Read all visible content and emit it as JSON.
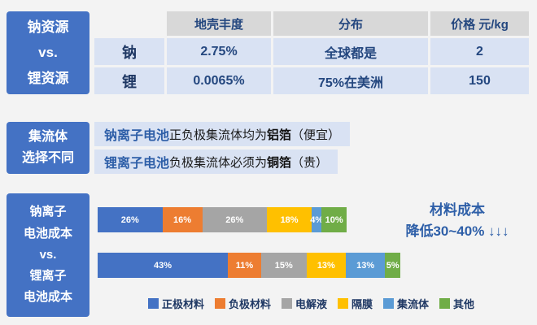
{
  "resources": {
    "sidebar": [
      "钠资源",
      "vs.",
      "锂资源"
    ],
    "table": {
      "headers": [
        "",
        "地壳丰度",
        "分布",
        "价格 元/kg"
      ],
      "rows": [
        [
          "钠",
          "2.75%",
          "全球都是",
          "2"
        ],
        [
          "锂",
          "0.0065%",
          "75%在美洲",
          "150"
        ]
      ]
    }
  },
  "collector": {
    "sidebar": [
      "集流体",
      "选择不同"
    ],
    "lines": [
      {
        "battery": "钠离子电池",
        "text": "正负极集流体均为",
        "material": "铝箔",
        "note": "（便宜）"
      },
      {
        "battery": "锂离子电池",
        "text": "负极集流体必须为",
        "material": "铜箔",
        "note": "（贵）"
      }
    ]
  },
  "cost": {
    "sidebar": [
      "钠离子",
      "电池成本",
      "vs.",
      "锂离子",
      "电池成本"
    ],
    "note_line1": "材料成本",
    "note_line2": "降低30~40% ↓↓↓"
  },
  "chart_data": {
    "type": "bar",
    "stacked": true,
    "orientation": "horizontal",
    "unit": "%",
    "categories": [
      "钠离子电池成本",
      "锂离子电池成本"
    ],
    "series": [
      {
        "name": "正极材料",
        "color": "#4472C4",
        "values": [
          26,
          43
        ]
      },
      {
        "name": "负极材料",
        "color": "#ED7D31",
        "values": [
          16,
          11
        ]
      },
      {
        "name": "电解液",
        "color": "#A5A5A5",
        "values": [
          26,
          15
        ]
      },
      {
        "name": "隔膜",
        "color": "#FFC000",
        "values": [
          18,
          13
        ]
      },
      {
        "name": "集流体",
        "color": "#5B9BD5",
        "values": [
          4,
          13
        ]
      },
      {
        "name": "其他",
        "color": "#70AD47",
        "values": [
          10,
          5
        ]
      }
    ],
    "bar_pixel_widths": [
      306,
      372
    ],
    "legend_position": "bottom",
    "annotation": "材料成本 降低30~40% ↓↓↓"
  },
  "colors": {
    "sidebar_bg": "#4472C4",
    "header_bg": "#D8D8D8",
    "row_bg": "#D9E2F3",
    "accent_text": "#2E5FA8"
  }
}
